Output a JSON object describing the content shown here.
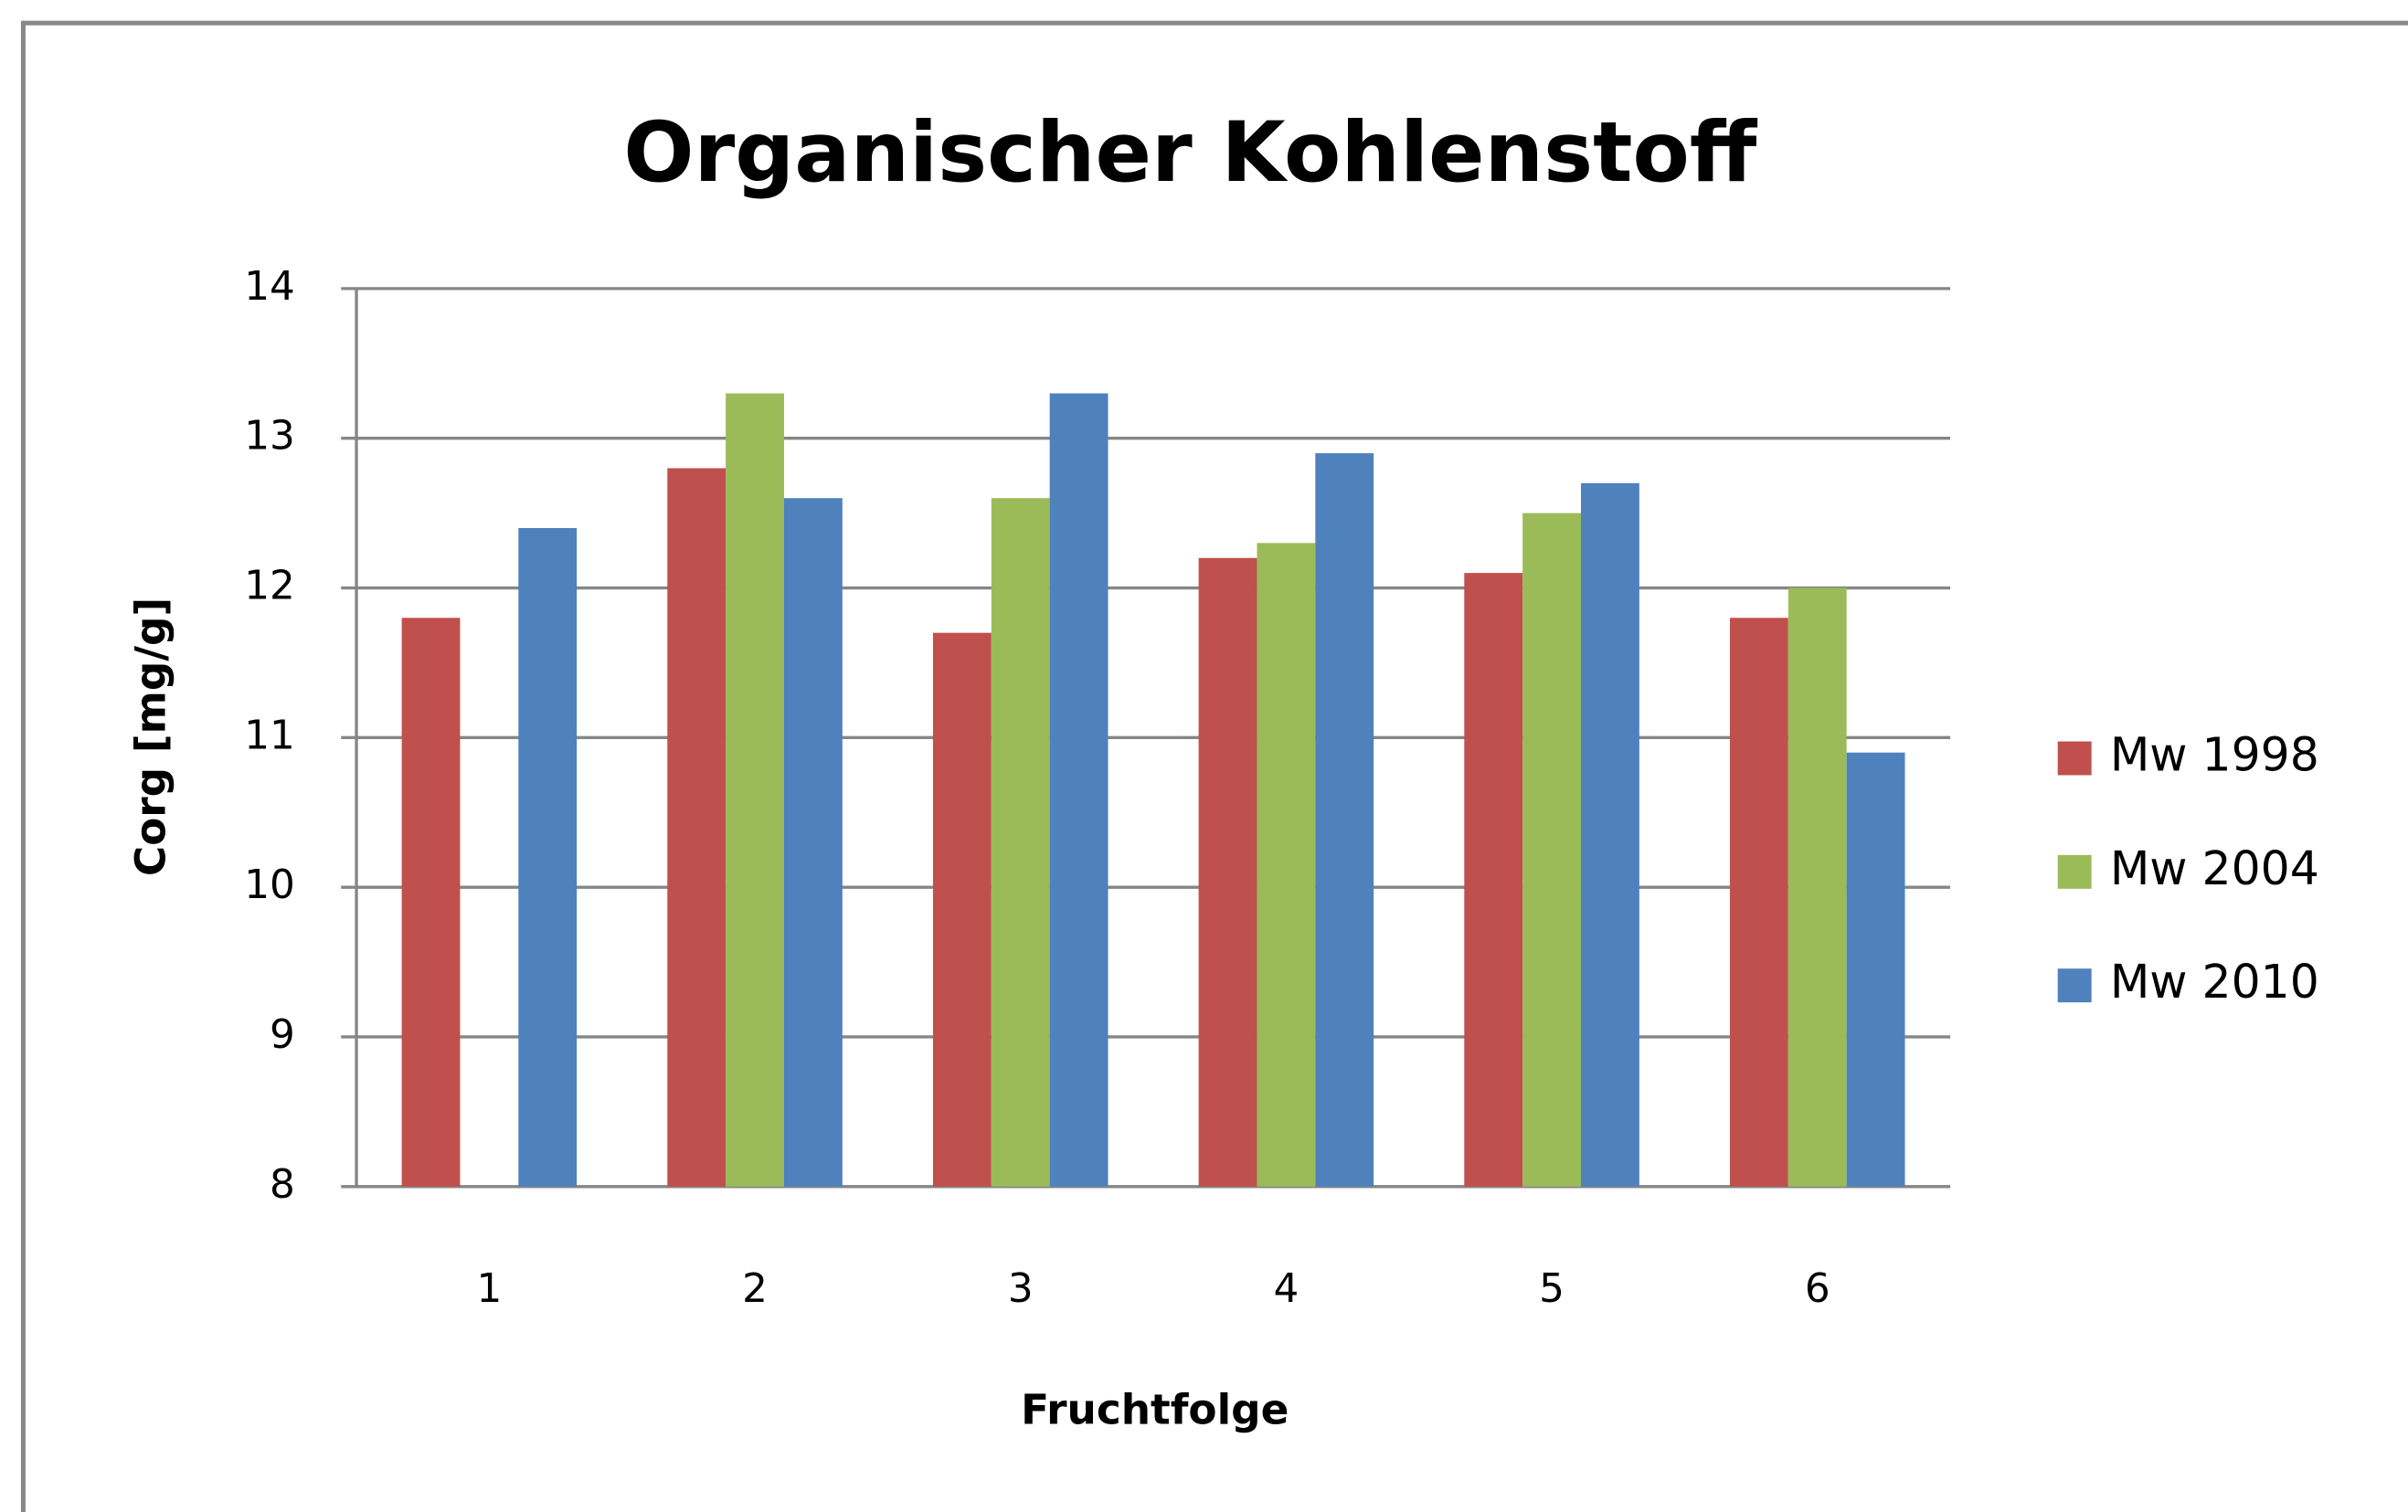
{
  "chart_data": {
    "type": "bar",
    "title": "Organischer Kohlenstoff",
    "x_label": "Fruchtfolge",
    "y_label": "Corg [mg/g]",
    "categories": [
      "1",
      "2",
      "3",
      "4",
      "5",
      "6"
    ],
    "series": [
      {
        "name": "Mw 1998",
        "color": "#c0504d",
        "values": [
          11.8,
          12.8,
          11.7,
          12.2,
          12.1,
          11.8
        ]
      },
      {
        "name": "Mw 2004",
        "color": "#9bbb59",
        "values": [
          null,
          13.3,
          12.6,
          12.3,
          12.5,
          12.0
        ]
      },
      {
        "name": "Mw 2010",
        "color": "#4f81bd",
        "values": [
          12.4,
          12.6,
          13.3,
          12.9,
          12.7,
          10.9
        ]
      }
    ],
    "ylim": [
      8,
      14
    ],
    "yticks": [
      8,
      9,
      10,
      11,
      12,
      13,
      14
    ],
    "grid": true,
    "legend": "right"
  }
}
